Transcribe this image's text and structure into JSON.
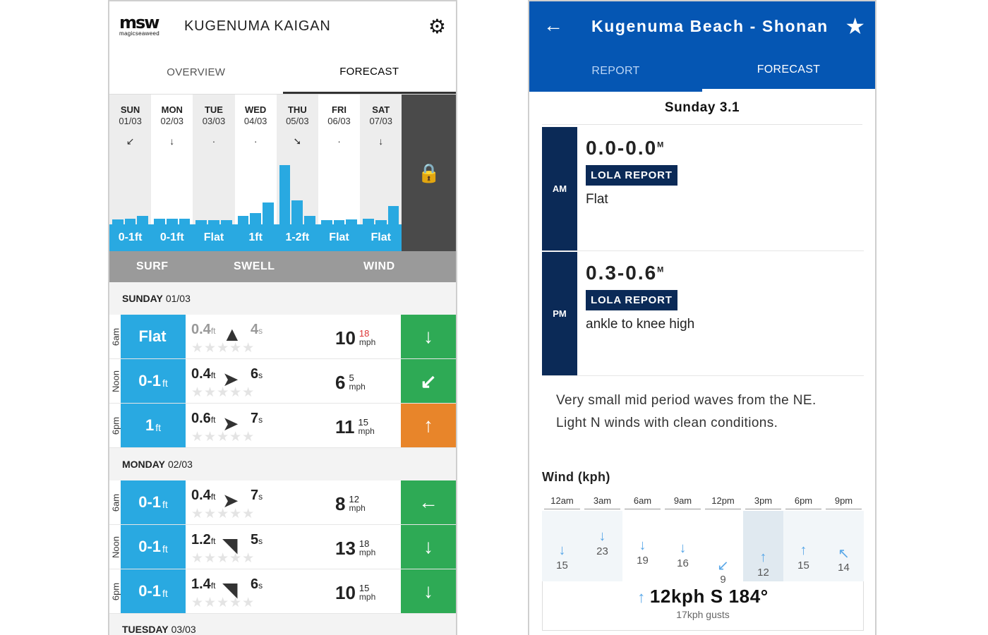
{
  "msw": {
    "logo_big": "msw",
    "logo_small": "magicseaweed",
    "title": "KUGENUMA KAIGAN",
    "tabs": {
      "overview": "OVERVIEW",
      "forecast": "FORECAST"
    },
    "days": [
      {
        "name": "SUN",
        "date": "01/03",
        "arrow": "↙",
        "label": "0-1ft",
        "bars": [
          0.06,
          0.07,
          0.1
        ]
      },
      {
        "name": "MON",
        "date": "02/03",
        "arrow": "↓",
        "label": "0-1ft",
        "bars": [
          0.07,
          0.07,
          0.07
        ]
      },
      {
        "name": "TUE",
        "date": "03/03",
        "arrow": "·",
        "label": "Flat",
        "bars": [
          0.05,
          0.05,
          0.05
        ]
      },
      {
        "name": "WED",
        "date": "04/03",
        "arrow": "·",
        "label": "1ft",
        "bars": [
          0.1,
          0.13,
          0.26
        ]
      },
      {
        "name": "THU",
        "date": "05/03",
        "arrow": "➘",
        "label": "1-2ft",
        "bars": [
          0.7,
          0.28,
          0.1
        ]
      },
      {
        "name": "FRI",
        "date": "06/03",
        "arrow": "·",
        "label": "Flat",
        "bars": [
          0.05,
          0.05,
          0.06
        ]
      },
      {
        "name": "SAT",
        "date": "07/03",
        "arrow": "↓",
        "label": "Flat",
        "bars": [
          0.07,
          0.05,
          0.22
        ]
      }
    ],
    "lock_icon": "🔒",
    "columns": {
      "surf": "SURF",
      "swell": "SWELL",
      "wind": "WIND"
    },
    "sunday": {
      "name": "SUNDAY",
      "date": "01/03",
      "rows": [
        {
          "time": "6am",
          "surf": "Flat",
          "surf_unit": "",
          "swell_h": "0.4",
          "swell_unit": "ft",
          "swell_p": "4",
          "period_unit": "s",
          "swell_dir": "▲",
          "wind": "10",
          "gust": "18",
          "wind_unit": "mph",
          "wind_arrow": "↓",
          "wind_color": "green"
        },
        {
          "time": "Noon",
          "surf": "0-1",
          "surf_unit": "ft",
          "swell_h": "0.4",
          "swell_unit": "ft",
          "swell_p": "6",
          "period_unit": "s",
          "swell_dir": "➤",
          "wind": "6",
          "gust": "5",
          "wind_unit": "mph",
          "wind_arrow": "↙",
          "wind_color": "green"
        },
        {
          "time": "6pm",
          "surf": "1",
          "surf_unit": "ft",
          "swell_h": "0.6",
          "swell_unit": "ft",
          "swell_p": "7",
          "period_unit": "s",
          "swell_dir": "➤",
          "wind": "11",
          "gust": "15",
          "wind_unit": "mph",
          "wind_arrow": "↑",
          "wind_color": "orange"
        }
      ]
    },
    "monday": {
      "name": "MONDAY",
      "date": "02/03",
      "rows": [
        {
          "time": "6am",
          "surf": "0-1",
          "surf_unit": "ft",
          "swell_h": "0.4",
          "swell_unit": "ft",
          "swell_p": "7",
          "period_unit": "s",
          "swell_dir": "➤",
          "wind": "8",
          "gust": "12",
          "wind_unit": "mph",
          "wind_arrow": "←",
          "wind_color": "green"
        },
        {
          "time": "Noon",
          "surf": "0-1",
          "surf_unit": "ft",
          "swell_h": "1.2",
          "swell_unit": "ft",
          "swell_p": "5",
          "period_unit": "s",
          "swell_dir": "◥",
          "wind": "13",
          "gust": "18",
          "wind_unit": "mph",
          "wind_arrow": "↓",
          "wind_color": "green"
        },
        {
          "time": "6pm",
          "surf": "0-1",
          "surf_unit": "ft",
          "swell_h": "1.4",
          "swell_unit": "ft",
          "swell_p": "6",
          "period_unit": "s",
          "swell_dir": "◥",
          "wind": "10",
          "gust": "15",
          "wind_unit": "mph",
          "wind_arrow": "↓",
          "wind_color": "green"
        }
      ]
    },
    "tuesday": {
      "name": "TUESDAY",
      "date": "03/03"
    }
  },
  "surfline": {
    "title": "Kugenuma Beach - Shonan",
    "tabs": {
      "report": "REPORT",
      "forecast": "FORECAST"
    },
    "date": "Sunday 3.1",
    "am": {
      "label": "AM",
      "height": "0.0-0.0",
      "unit": "M",
      "badge": "LOLA REPORT",
      "condition": "Flat"
    },
    "pm": {
      "label": "PM",
      "height": "0.3-0.6",
      "unit": "M",
      "badge": "LOLA REPORT",
      "condition": "ankle to knee high"
    },
    "description_1": "Very small mid period waves from the NE.",
    "description_2": "Light N winds with clean conditions.",
    "wind_title": "Wind (kph)",
    "hours": [
      "12am",
      "3am",
      "6am",
      "9am",
      "12pm",
      "3pm",
      "6pm",
      "9pm"
    ],
    "wind_values": [
      {
        "v": "15",
        "arrow": "↓",
        "level": 0.55
      },
      {
        "v": "23",
        "arrow": "↓",
        "level": 0.75
      },
      {
        "v": "19",
        "arrow": "↓",
        "level": 0.62
      },
      {
        "v": "16",
        "arrow": "↓",
        "level": 0.58
      },
      {
        "v": "9",
        "arrow": "↙",
        "level": 0.35
      },
      {
        "v": "12",
        "arrow": "↑",
        "level": 0.45
      },
      {
        "v": "15",
        "arrow": "↑",
        "level": 0.55
      },
      {
        "v": "14",
        "arrow": "↖",
        "level": 0.52
      }
    ],
    "summary": "12kph S 184°",
    "summary_arrow": "↑",
    "gusts": "17kph gusts"
  }
}
